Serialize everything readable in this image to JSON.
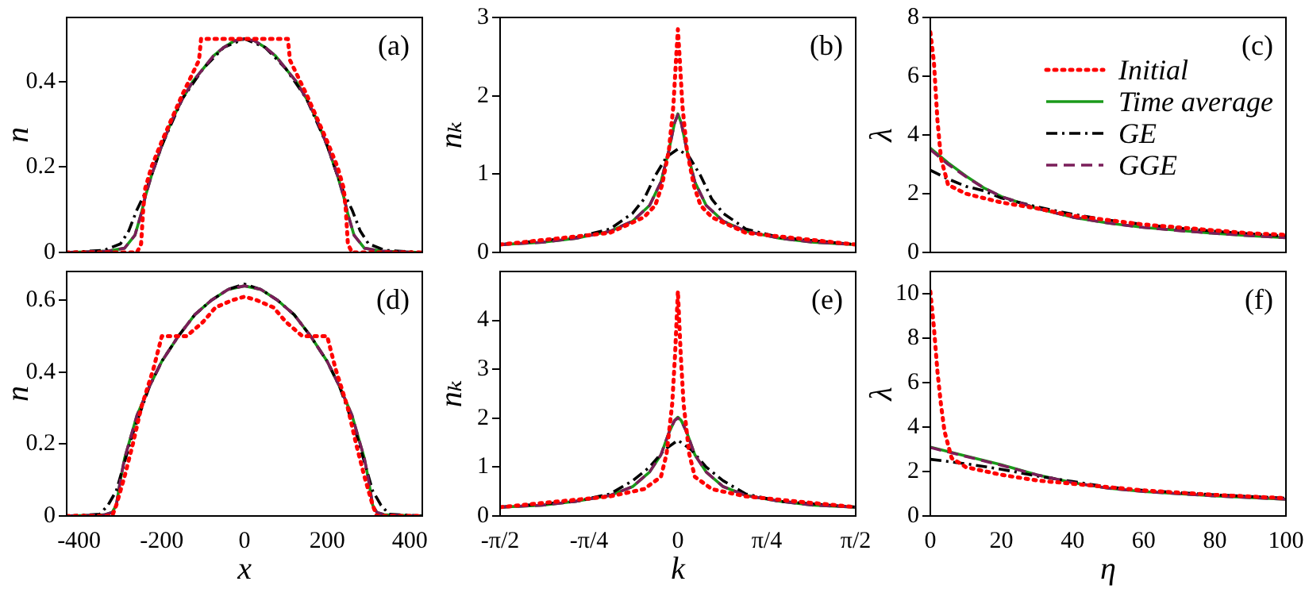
{
  "chart_data": [
    {
      "type": "line",
      "ylabel": "n",
      "xlim": [
        -430,
        430
      ],
      "xticks": [
        {
          "value": -400,
          "label": null
        },
        {
          "value": -200,
          "label": null
        },
        {
          "value": 0,
          "label": null
        },
        {
          "value": 200,
          "label": null
        },
        {
          "value": 400,
          "label": null
        }
      ],
      "ylim": [
        0,
        0.55
      ],
      "yticks": [
        0,
        0.2,
        0.4
      ],
      "tick_labels": "y",
      "annotations": [
        "(a)"
      ],
      "series": [
        {
          "color": "#ff0000",
          "line_style": "dotted",
          "x": [
            -430,
            -260,
            -250,
            -245,
            -240,
            -225,
            -200,
            -150,
            -120,
            -110,
            -105,
            0,
            105,
            110,
            120,
            150,
            200,
            225,
            240,
            245,
            250,
            260,
            430
          ],
          "values": [
            0,
            0,
            0.02,
            0.1,
            0.15,
            0.2,
            0.26,
            0.37,
            0.43,
            0.45,
            0.5,
            0.5,
            0.5,
            0.45,
            0.43,
            0.37,
            0.26,
            0.2,
            0.15,
            0.1,
            0.02,
            0,
            0
          ]
        },
        {
          "color": "#1a9a1a",
          "line_style": "solid",
          "x": [
            -430,
            -330,
            -290,
            -265,
            -250,
            -240,
            -225,
            -200,
            -175,
            -150,
            -125,
            -100,
            -75,
            -50,
            -25,
            0,
            25,
            50,
            75,
            100,
            125,
            150,
            175,
            200,
            225,
            240,
            250,
            265,
            290,
            330,
            430
          ],
          "values": [
            0,
            0.003,
            0.01,
            0.04,
            0.09,
            0.13,
            0.18,
            0.25,
            0.31,
            0.36,
            0.4,
            0.43,
            0.46,
            0.48,
            0.495,
            0.5,
            0.495,
            0.48,
            0.46,
            0.43,
            0.4,
            0.36,
            0.31,
            0.25,
            0.18,
            0.13,
            0.09,
            0.04,
            0.01,
            0.003,
            0
          ]
        },
        {
          "color": "#000000",
          "line_style": "dashdot",
          "x": [
            -430,
            -340,
            -300,
            -280,
            -260,
            -240,
            -225,
            -200,
            -150,
            -100,
            -50,
            0,
            50,
            100,
            150,
            200,
            225,
            240,
            260,
            280,
            300,
            340,
            430
          ],
          "values": [
            0,
            0.005,
            0.02,
            0.05,
            0.1,
            0.14,
            0.18,
            0.25,
            0.36,
            0.43,
            0.48,
            0.5,
            0.48,
            0.43,
            0.36,
            0.25,
            0.18,
            0.14,
            0.1,
            0.05,
            0.02,
            0.005,
            0
          ]
        },
        {
          "color": "#7a1e5a",
          "line_style": "dashed",
          "x": [
            -430,
            -330,
            -290,
            -265,
            -250,
            -240,
            -225,
            -200,
            -175,
            -150,
            -125,
            -100,
            -75,
            -50,
            -25,
            0,
            25,
            50,
            75,
            100,
            125,
            150,
            175,
            200,
            225,
            240,
            250,
            265,
            290,
            330,
            430
          ],
          "values": [
            0,
            0.003,
            0.01,
            0.04,
            0.09,
            0.13,
            0.18,
            0.25,
            0.31,
            0.36,
            0.4,
            0.43,
            0.46,
            0.48,
            0.495,
            0.5,
            0.495,
            0.48,
            0.46,
            0.43,
            0.4,
            0.36,
            0.31,
            0.25,
            0.18,
            0.13,
            0.09,
            0.04,
            0.01,
            0.003,
            0
          ]
        }
      ]
    },
    {
      "type": "line",
      "ylabel": "nₖ",
      "xlim": [
        -1.571,
        1.571
      ],
      "xticks": [
        {
          "value": -1.571,
          "label": null
        },
        {
          "value": -0.785,
          "label": null
        },
        {
          "value": 0,
          "label": null
        },
        {
          "value": 0.785,
          "label": null
        },
        {
          "value": 1.571,
          "label": null
        }
      ],
      "ylim": [
        0,
        3
      ],
      "yticks": [
        0,
        1,
        2,
        3
      ],
      "tick_labels": "y",
      "annotations": [
        "(b)"
      ],
      "series": [
        {
          "color": "#ff0000",
          "line_style": "dotted",
          "x": [
            -1.571,
            -0.6,
            -0.3,
            -0.2,
            -0.14,
            -0.08,
            -0.04,
            -0.015,
            0,
            0.015,
            0.04,
            0.08,
            0.14,
            0.2,
            0.3,
            0.6,
            1.571
          ],
          "values": [
            0.1,
            0.25,
            0.45,
            0.6,
            0.86,
            1.3,
            1.87,
            2.5,
            2.85,
            2.5,
            1.87,
            1.3,
            0.86,
            0.6,
            0.45,
            0.25,
            0.1
          ]
        },
        {
          "color": "#1a9a1a",
          "line_style": "solid",
          "x": [
            -1.571,
            -1.2,
            -0.9,
            -0.6,
            -0.4,
            -0.25,
            -0.15,
            -0.08,
            -0.03,
            0,
            0.03,
            0.08,
            0.15,
            0.25,
            0.4,
            0.6,
            0.9,
            1.2,
            1.571
          ],
          "values": [
            0.1,
            0.13,
            0.18,
            0.27,
            0.4,
            0.6,
            0.9,
            1.3,
            1.65,
            1.77,
            1.65,
            1.3,
            0.9,
            0.6,
            0.4,
            0.27,
            0.18,
            0.13,
            0.1
          ]
        },
        {
          "color": "#000000",
          "line_style": "dashdot",
          "x": [
            -1.571,
            -0.9,
            -0.6,
            -0.4,
            -0.3,
            -0.2,
            -0.1,
            0,
            0.1,
            0.2,
            0.3,
            0.4,
            0.6,
            0.9,
            1.571
          ],
          "values": [
            0.1,
            0.19,
            0.3,
            0.5,
            0.68,
            0.98,
            1.22,
            1.32,
            1.22,
            0.98,
            0.68,
            0.5,
            0.3,
            0.19,
            0.1
          ]
        },
        {
          "color": "#7a1e5a",
          "line_style": "dashed",
          "x": [
            -1.571,
            -1.2,
            -0.9,
            -0.6,
            -0.4,
            -0.25,
            -0.15,
            -0.08,
            -0.03,
            0,
            0.03,
            0.08,
            0.15,
            0.25,
            0.4,
            0.6,
            0.9,
            1.2,
            1.571
          ],
          "values": [
            0.1,
            0.13,
            0.18,
            0.27,
            0.4,
            0.6,
            0.9,
            1.3,
            1.65,
            1.76,
            1.65,
            1.3,
            0.9,
            0.6,
            0.4,
            0.27,
            0.18,
            0.13,
            0.1
          ]
        }
      ]
    },
    {
      "type": "line",
      "ylabel": "λ",
      "xlim": [
        0,
        100
      ],
      "xticks": [
        {
          "value": 0,
          "label": null
        },
        {
          "value": 20,
          "label": null
        },
        {
          "value": 40,
          "label": null
        },
        {
          "value": 60,
          "label": null
        },
        {
          "value": 80,
          "label": null
        },
        {
          "value": 100,
          "label": null
        }
      ],
      "ylim": [
        0,
        8
      ],
      "yticks": [
        0,
        2,
        4,
        6,
        8
      ],
      "tick_labels": "y",
      "annotations": [
        "(c)"
      ],
      "legend": "top right",
      "series": [
        {
          "name": "Initial",
          "color": "#ff0000",
          "line_style": "dotted",
          "x": [
            0,
            1,
            2,
            3,
            5,
            10,
            20,
            30,
            40,
            50,
            60,
            70,
            80,
            90,
            100
          ],
          "values": [
            7.5,
            6.5,
            4.5,
            3.2,
            2.3,
            2.0,
            1.7,
            1.5,
            1.25,
            1.1,
            0.95,
            0.85,
            0.75,
            0.65,
            0.6
          ]
        },
        {
          "name": "Time average",
          "color": "#1a9a1a",
          "line_style": "solid",
          "x": [
            0,
            5,
            10,
            15,
            20,
            30,
            40,
            50,
            60,
            70,
            80,
            90,
            100
          ],
          "values": [
            3.55,
            3.05,
            2.6,
            2.2,
            1.9,
            1.5,
            1.2,
            1.0,
            0.85,
            0.75,
            0.65,
            0.57,
            0.5
          ]
        },
        {
          "name": "GE",
          "color": "#000000",
          "line_style": "dashdot",
          "x": [
            0,
            5,
            10,
            15,
            20,
            30,
            40,
            50,
            60,
            70,
            80,
            90,
            100
          ],
          "values": [
            2.8,
            2.5,
            2.25,
            2.1,
            1.85,
            1.55,
            1.3,
            1.1,
            0.95,
            0.82,
            0.72,
            0.63,
            0.55
          ]
        },
        {
          "name": "GGE",
          "color": "#7a1e5a",
          "line_style": "dashed",
          "x": [
            0,
            5,
            10,
            15,
            20,
            30,
            40,
            50,
            60,
            70,
            80,
            90,
            100
          ],
          "values": [
            3.5,
            3.0,
            2.58,
            2.2,
            1.9,
            1.5,
            1.2,
            1.0,
            0.85,
            0.74,
            0.65,
            0.57,
            0.5
          ]
        }
      ]
    },
    {
      "type": "line",
      "xlabel": "x",
      "ylabel": "n",
      "xlim": [
        -430,
        430
      ],
      "xticks": [
        -400,
        -200,
        0,
        200,
        400
      ],
      "ylim": [
        0,
        0.68
      ],
      "yticks": [
        0,
        0.2,
        0.4,
        0.6
      ],
      "annotations": [
        "(d)"
      ],
      "series": [
        {
          "color": "#ff0000",
          "line_style": "dotted",
          "x": [
            -430,
            -320,
            -310,
            -290,
            -270,
            -250,
            -220,
            -200,
            -170,
            -140,
            -120,
            -100,
            -70,
            -30,
            0,
            30,
            70,
            100,
            120,
            140,
            170,
            200,
            220,
            250,
            270,
            290,
            310,
            320,
            430
          ],
          "values": [
            0,
            0,
            0.03,
            0.11,
            0.2,
            0.3,
            0.41,
            0.5,
            0.5,
            0.5,
            0.52,
            0.54,
            0.58,
            0.6,
            0.61,
            0.6,
            0.58,
            0.54,
            0.52,
            0.5,
            0.5,
            0.5,
            0.41,
            0.3,
            0.2,
            0.11,
            0.03,
            0,
            0
          ]
        },
        {
          "color": "#1a9a1a",
          "line_style": "solid",
          "x": [
            -430,
            -340,
            -320,
            -310,
            -300,
            -290,
            -280,
            -260,
            -230,
            -200,
            -160,
            -120,
            -80,
            -40,
            0,
            40,
            80,
            120,
            160,
            200,
            230,
            260,
            280,
            290,
            300,
            310,
            320,
            340,
            430
          ],
          "values": [
            0,
            0.003,
            0.01,
            0.03,
            0.1,
            0.16,
            0.2,
            0.28,
            0.36,
            0.43,
            0.5,
            0.56,
            0.6,
            0.63,
            0.64,
            0.63,
            0.6,
            0.56,
            0.5,
            0.43,
            0.36,
            0.28,
            0.2,
            0.16,
            0.1,
            0.03,
            0.01,
            0.003,
            0
          ]
        },
        {
          "color": "#000000",
          "line_style": "dashdot",
          "x": [
            -430,
            -350,
            -330,
            -310,
            -290,
            -270,
            -230,
            -200,
            -160,
            -120,
            -80,
            -40,
            0,
            40,
            80,
            120,
            160,
            200,
            230,
            270,
            290,
            310,
            330,
            350,
            430
          ],
          "values": [
            0,
            0.005,
            0.03,
            0.07,
            0.15,
            0.23,
            0.36,
            0.43,
            0.5,
            0.56,
            0.6,
            0.63,
            0.645,
            0.63,
            0.6,
            0.56,
            0.5,
            0.43,
            0.36,
            0.23,
            0.15,
            0.07,
            0.03,
            0.005,
            0
          ]
        },
        {
          "color": "#7a1e5a",
          "line_style": "dashed",
          "x": [
            -430,
            -340,
            -320,
            -310,
            -300,
            -290,
            -280,
            -260,
            -230,
            -200,
            -160,
            -120,
            -80,
            -40,
            0,
            40,
            80,
            120,
            160,
            200,
            230,
            260,
            280,
            290,
            300,
            310,
            320,
            340,
            430
          ],
          "values": [
            0,
            0.003,
            0.01,
            0.03,
            0.1,
            0.16,
            0.2,
            0.28,
            0.36,
            0.43,
            0.5,
            0.56,
            0.6,
            0.63,
            0.64,
            0.63,
            0.6,
            0.56,
            0.5,
            0.43,
            0.36,
            0.28,
            0.2,
            0.16,
            0.1,
            0.03,
            0.01,
            0.003,
            0
          ]
        }
      ]
    },
    {
      "type": "line",
      "xlabel": "k",
      "ylabel": "nₖ",
      "xlim": [
        -1.571,
        1.571
      ],
      "xticks": [
        {
          "value": -1.571,
          "label": "-π/2"
        },
        {
          "value": -0.785,
          "label": "-π/4"
        },
        0,
        {
          "value": 0.785,
          "label": "π/4"
        },
        {
          "value": 1.571,
          "label": "π/2"
        }
      ],
      "ylim": [
        0,
        5
      ],
      "yticks": [
        0,
        1,
        2,
        3,
        4
      ],
      "annotations": [
        "(e)"
      ],
      "series": [
        {
          "color": "#ff0000",
          "line_style": "dotted",
          "x": [
            -1.571,
            -0.6,
            -0.3,
            -0.15,
            -0.1,
            -0.05,
            -0.025,
            0,
            0.025,
            0.05,
            0.1,
            0.15,
            0.3,
            0.6,
            1.571
          ],
          "values": [
            0.18,
            0.4,
            0.55,
            0.8,
            1.27,
            2.3,
            3.3,
            4.6,
            3.3,
            2.3,
            1.27,
            0.8,
            0.55,
            0.4,
            0.18
          ]
        },
        {
          "color": "#1a9a1a",
          "line_style": "solid",
          "x": [
            -1.571,
            -1.2,
            -0.9,
            -0.6,
            -0.4,
            -0.25,
            -0.15,
            -0.08,
            -0.03,
            0,
            0.03,
            0.08,
            0.15,
            0.25,
            0.4,
            0.6,
            0.9,
            1.2,
            1.571
          ],
          "values": [
            0.18,
            0.22,
            0.3,
            0.42,
            0.6,
            0.9,
            1.25,
            1.7,
            1.95,
            2.02,
            1.95,
            1.7,
            1.25,
            0.9,
            0.6,
            0.42,
            0.3,
            0.22,
            0.18
          ]
        },
        {
          "color": "#000000",
          "line_style": "dashdot",
          "x": [
            -1.571,
            -0.9,
            -0.6,
            -0.4,
            -0.25,
            -0.12,
            0,
            0.12,
            0.25,
            0.4,
            0.6,
            0.9,
            1.571
          ],
          "values": [
            0.18,
            0.3,
            0.45,
            0.72,
            1.0,
            1.35,
            1.55,
            1.35,
            1.0,
            0.72,
            0.45,
            0.3,
            0.18
          ]
        },
        {
          "color": "#7a1e5a",
          "line_style": "dashed",
          "x": [
            -1.571,
            -1.2,
            -0.9,
            -0.6,
            -0.4,
            -0.25,
            -0.15,
            -0.08,
            -0.03,
            0,
            0.03,
            0.08,
            0.15,
            0.25,
            0.4,
            0.6,
            0.9,
            1.2,
            1.571
          ],
          "values": [
            0.18,
            0.22,
            0.3,
            0.42,
            0.6,
            0.9,
            1.25,
            1.7,
            1.95,
            2.0,
            1.95,
            1.7,
            1.25,
            0.9,
            0.6,
            0.42,
            0.3,
            0.22,
            0.18
          ]
        }
      ]
    },
    {
      "type": "line",
      "xlabel": "η",
      "ylabel": "λ",
      "xlim": [
        0,
        100
      ],
      "xticks": [
        0,
        20,
        40,
        60,
        80,
        100
      ],
      "ylim": [
        0,
        11
      ],
      "yticks": [
        0,
        2,
        4,
        6,
        8,
        10
      ],
      "annotations": [
        "(f)"
      ],
      "series": [
        {
          "color": "#ff0000",
          "line_style": "dotted",
          "x": [
            0,
            1,
            2,
            3,
            4,
            6,
            10,
            20,
            30,
            40,
            50,
            60,
            80,
            100
          ],
          "values": [
            10.1,
            8.5,
            6.5,
            5.0,
            3.8,
            2.6,
            2.2,
            1.85,
            1.6,
            1.45,
            1.3,
            1.15,
            0.95,
            0.8
          ]
        },
        {
          "color": "#1a9a1a",
          "line_style": "solid",
          "x": [
            0,
            10,
            20,
            30,
            40,
            50,
            60,
            80,
            100
          ],
          "values": [
            3.1,
            2.7,
            2.3,
            1.85,
            1.5,
            1.25,
            1.1,
            0.9,
            0.75
          ]
        },
        {
          "color": "#000000",
          "line_style": "dashdot",
          "x": [
            0,
            10,
            20,
            30,
            40,
            50,
            60,
            80,
            100
          ],
          "values": [
            2.55,
            2.35,
            2.1,
            1.8,
            1.55,
            1.3,
            1.15,
            0.95,
            0.8
          ]
        },
        {
          "color": "#7a1e5a",
          "line_style": "dashed",
          "x": [
            0,
            10,
            20,
            30,
            40,
            50,
            60,
            80,
            100
          ],
          "values": [
            3.08,
            2.68,
            2.28,
            1.85,
            1.5,
            1.25,
            1.1,
            0.9,
            0.75
          ]
        }
      ]
    }
  ]
}
